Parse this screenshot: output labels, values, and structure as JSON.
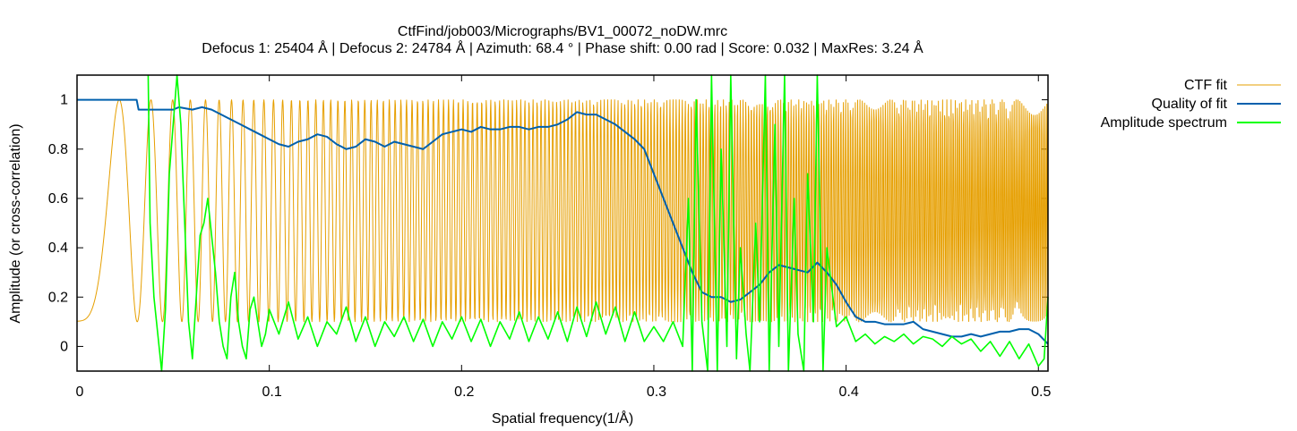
{
  "chart_data": {
    "type": "line",
    "title": "CtfFind/job003/Micrographs/BV1_00072_noDW.mrc",
    "subtitle": "Defocus 1: 25404 Å | Defocus 2: 24784 Å | Azimuth: 68.4 ° | Phase shift: 0.00 rad | Score: 0.032 | MaxRes: 3.24 Å",
    "xlabel": "Spatial frequency(1/Å)",
    "ylabel": "Amplitude (or cross-correlation)",
    "xlim": [
      0,
      0.505
    ],
    "ylim": [
      -0.1,
      1.1
    ],
    "x_ticks": [
      0,
      0.1,
      0.2,
      0.3,
      0.4,
      0.5
    ],
    "x_tick_labels": [
      "0",
      "0.1",
      "0.2",
      "0.3",
      "0.4",
      "0.5"
    ],
    "y_ticks": [
      0,
      0.2,
      0.4,
      0.6,
      0.8,
      1
    ],
    "y_tick_labels": [
      "0",
      "0.2",
      "0.4",
      "0.6",
      "0.8",
      "1"
    ],
    "legend_position": "top-right-outside",
    "series": [
      {
        "name": "CTF fit",
        "color": "#e69f00",
        "model": "ctf",
        "min": 0.1,
        "max": 1.0
      },
      {
        "name": "Quality of fit",
        "color": "#0060ad",
        "x": [
          0,
          0.031,
          0.032,
          0.05,
          0.053,
          0.06,
          0.065,
          0.07,
          0.075,
          0.08,
          0.085,
          0.09,
          0.095,
          0.1,
          0.105,
          0.11,
          0.115,
          0.12,
          0.125,
          0.13,
          0.135,
          0.14,
          0.145,
          0.15,
          0.155,
          0.16,
          0.165,
          0.17,
          0.175,
          0.18,
          0.185,
          0.19,
          0.195,
          0.2,
          0.205,
          0.21,
          0.215,
          0.22,
          0.225,
          0.23,
          0.235,
          0.24,
          0.245,
          0.25,
          0.255,
          0.26,
          0.265,
          0.27,
          0.275,
          0.28,
          0.285,
          0.29,
          0.295,
          0.3,
          0.305,
          0.31,
          0.315,
          0.32,
          0.325,
          0.33,
          0.335,
          0.34,
          0.345,
          0.35,
          0.355,
          0.36,
          0.365,
          0.37,
          0.375,
          0.38,
          0.385,
          0.39,
          0.395,
          0.4,
          0.405,
          0.41,
          0.415,
          0.42,
          0.425,
          0.43,
          0.435,
          0.44,
          0.445,
          0.45,
          0.455,
          0.46,
          0.465,
          0.47,
          0.475,
          0.48,
          0.485,
          0.49,
          0.495,
          0.5,
          0.505
        ],
        "values": [
          1.0,
          1.0,
          0.96,
          0.96,
          0.97,
          0.96,
          0.97,
          0.96,
          0.94,
          0.92,
          0.9,
          0.88,
          0.86,
          0.84,
          0.82,
          0.81,
          0.83,
          0.84,
          0.86,
          0.85,
          0.82,
          0.8,
          0.81,
          0.84,
          0.83,
          0.81,
          0.83,
          0.82,
          0.81,
          0.8,
          0.83,
          0.86,
          0.87,
          0.88,
          0.87,
          0.89,
          0.88,
          0.88,
          0.89,
          0.89,
          0.88,
          0.89,
          0.89,
          0.9,
          0.92,
          0.95,
          0.94,
          0.94,
          0.92,
          0.9,
          0.87,
          0.84,
          0.8,
          0.7,
          0.6,
          0.5,
          0.4,
          0.3,
          0.22,
          0.2,
          0.2,
          0.18,
          0.19,
          0.22,
          0.25,
          0.3,
          0.33,
          0.32,
          0.31,
          0.3,
          0.34,
          0.3,
          0.25,
          0.18,
          0.12,
          0.1,
          0.1,
          0.09,
          0.09,
          0.09,
          0.1,
          0.07,
          0.06,
          0.05,
          0.04,
          0.04,
          0.05,
          0.04,
          0.05,
          0.06,
          0.06,
          0.07,
          0.07,
          0.05,
          0.01
        ]
      },
      {
        "name": "Amplitude spectrum",
        "color": "#00ff00",
        "x": [
          0.037,
          0.038,
          0.04,
          0.042,
          0.044,
          0.046,
          0.048,
          0.05,
          0.052,
          0.054,
          0.056,
          0.058,
          0.06,
          0.062,
          0.064,
          0.066,
          0.068,
          0.07,
          0.072,
          0.074,
          0.076,
          0.078,
          0.08,
          0.082,
          0.084,
          0.086,
          0.088,
          0.09,
          0.092,
          0.094,
          0.096,
          0.098,
          0.1,
          0.105,
          0.11,
          0.115,
          0.12,
          0.125,
          0.13,
          0.135,
          0.14,
          0.145,
          0.15,
          0.155,
          0.16,
          0.165,
          0.17,
          0.175,
          0.18,
          0.185,
          0.19,
          0.195,
          0.2,
          0.205,
          0.21,
          0.215,
          0.22,
          0.225,
          0.23,
          0.235,
          0.24,
          0.245,
          0.25,
          0.255,
          0.26,
          0.265,
          0.27,
          0.275,
          0.28,
          0.285,
          0.29,
          0.295,
          0.3,
          0.305,
          0.31,
          0.315,
          0.318,
          0.32,
          0.322,
          0.325,
          0.328,
          0.33,
          0.333,
          0.335,
          0.338,
          0.34,
          0.343,
          0.345,
          0.348,
          0.35,
          0.353,
          0.355,
          0.358,
          0.36,
          0.363,
          0.365,
          0.368,
          0.37,
          0.373,
          0.375,
          0.378,
          0.38,
          0.383,
          0.385,
          0.388,
          0.39,
          0.395,
          0.4,
          0.405,
          0.41,
          0.415,
          0.42,
          0.425,
          0.43,
          0.435,
          0.44,
          0.445,
          0.45,
          0.455,
          0.46,
          0.465,
          0.47,
          0.475,
          0.48,
          0.485,
          0.49,
          0.495,
          0.5,
          0.503,
          0.505
        ],
        "values": [
          1.1,
          0.5,
          0.2,
          0.05,
          -0.1,
          0.15,
          0.7,
          0.9,
          1.1,
          0.9,
          0.5,
          0.1,
          -0.05,
          0.2,
          0.45,
          0.5,
          0.6,
          0.45,
          0.3,
          0.1,
          0.0,
          -0.05,
          0.2,
          0.3,
          0.1,
          0.0,
          -0.05,
          0.15,
          0.2,
          0.1,
          0.0,
          0.05,
          0.15,
          0.05,
          0.18,
          0.03,
          0.12,
          0.0,
          0.1,
          0.05,
          0.16,
          0.02,
          0.12,
          0.0,
          0.1,
          0.04,
          0.12,
          0.02,
          0.11,
          0.0,
          0.1,
          0.03,
          0.12,
          0.02,
          0.11,
          0.0,
          0.1,
          0.03,
          0.14,
          0.02,
          0.12,
          0.03,
          0.14,
          0.02,
          0.16,
          0.04,
          0.18,
          0.05,
          0.16,
          0.02,
          0.14,
          0.02,
          0.08,
          0.02,
          0.1,
          0.0,
          0.6,
          -0.1,
          1.0,
          0.1,
          -0.1,
          1.1,
          -0.1,
          0.8,
          0.0,
          1.1,
          -0.05,
          0.4,
          0.05,
          -0.1,
          0.5,
          0.1,
          1.1,
          -0.1,
          0.9,
          0.0,
          1.1,
          -0.1,
          0.6,
          0.05,
          -0.1,
          0.7,
          0.1,
          1.1,
          -0.1,
          0.4,
          0.08,
          0.12,
          0.02,
          0.05,
          0.01,
          0.04,
          0.02,
          0.05,
          0.01,
          0.04,
          0.03,
          0.0,
          0.04,
          0.01,
          0.03,
          -0.02,
          0.02,
          -0.04,
          0.02,
          -0.05,
          0.01,
          -0.08,
          -0.05,
          0.2
        ]
      }
    ]
  }
}
